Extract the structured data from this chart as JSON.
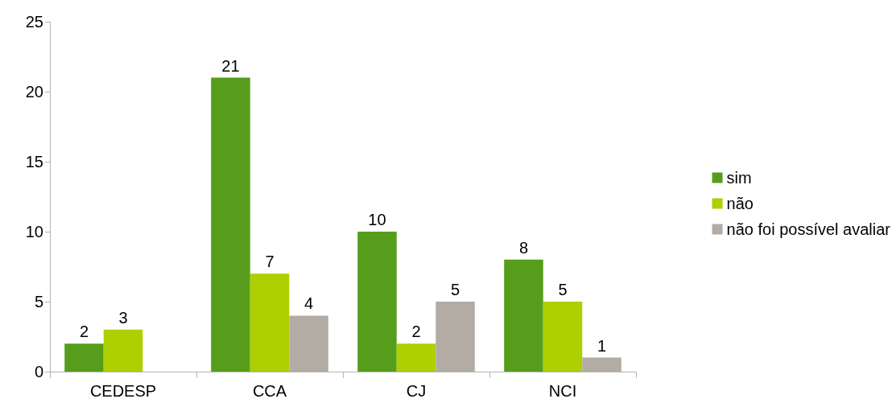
{
  "chart_data": {
    "type": "bar",
    "categories": [
      "CEDESP",
      "CCA",
      "CJ",
      "NCI"
    ],
    "series": [
      {
        "name": "sim",
        "color": "#579d1c",
        "values": [
          2,
          21,
          10,
          8
        ]
      },
      {
        "name": "não",
        "color": "#aecf00",
        "values": [
          3,
          7,
          2,
          5
        ]
      },
      {
        "name": "não foi possível avaliar",
        "color": "#b3aca4",
        "values": [
          null,
          4,
          5,
          1
        ]
      }
    ],
    "ylim": [
      0,
      25
    ],
    "yticks": [
      0,
      5,
      10,
      15,
      20,
      25
    ],
    "grid": false,
    "legend": "right",
    "data_labels": true
  }
}
